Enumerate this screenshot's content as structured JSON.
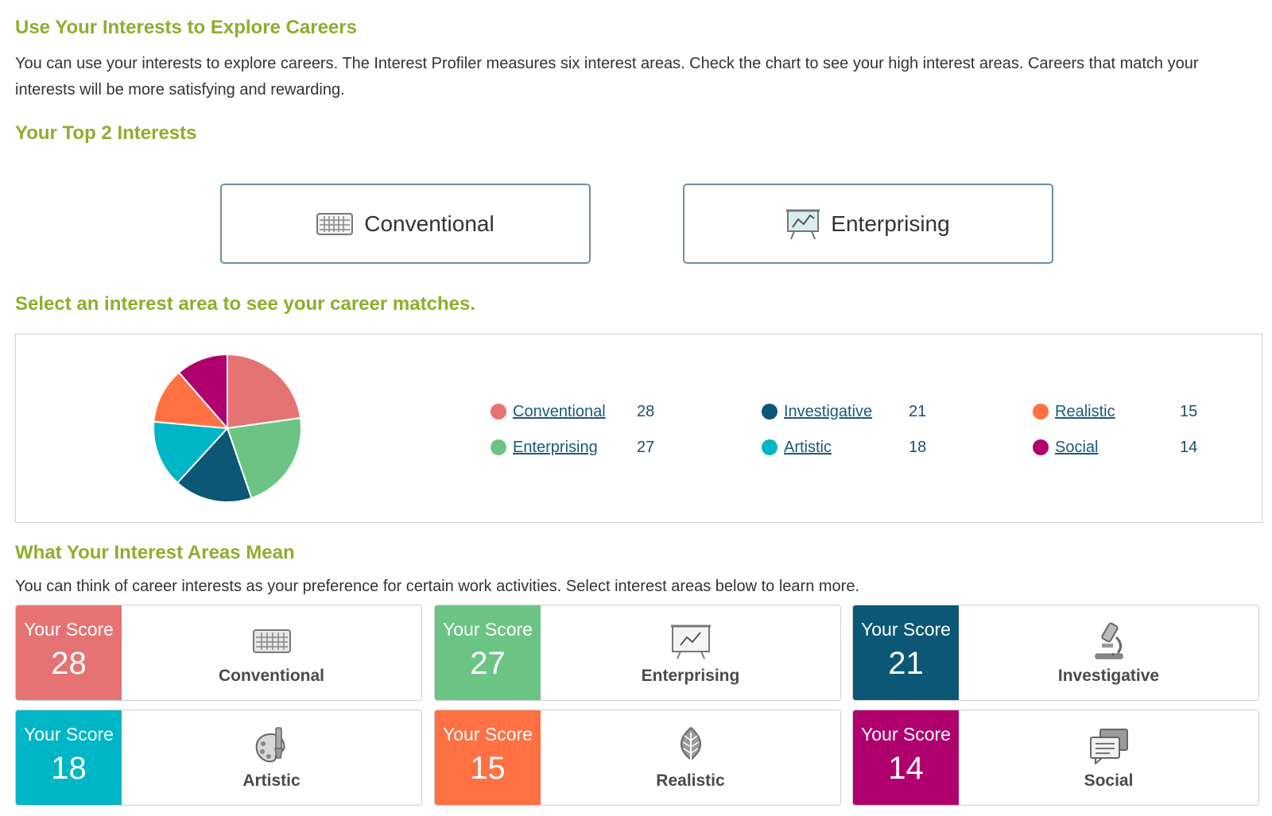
{
  "page": {
    "heading_explore": "Use Your Interests to Explore Careers",
    "intro_text": "You can use your interests to explore careers. The Interest Profiler measures six interest areas. Check the chart to see your high interest areas. Careers that match your interests will be more satisfying and rewarding.",
    "heading_top": "Your Top 2 Interests",
    "heading_select": "Select an interest area to see your career matches.",
    "heading_mean": "What Your Interest Areas Mean",
    "mean_text": "You can think of career interests as your preference for certain work activities. Select interest areas below to learn more."
  },
  "top_interests": [
    {
      "label": "Conventional",
      "icon": "keyboard-icon"
    },
    {
      "label": "Enterprising",
      "icon": "presentation-chart-icon"
    }
  ],
  "colors": {
    "Conventional": "#e57373",
    "Enterprising": "#6cc484",
    "Investigative": "#0b5775",
    "Artistic": "#00b5c6",
    "Realistic": "#ff7043",
    "Social": "#b0006e",
    "accent_heading": "#8dae2c",
    "link": "#1a5a7a"
  },
  "chart_data": {
    "type": "pie",
    "title": "",
    "categories": [
      "Conventional",
      "Enterprising",
      "Investigative",
      "Artistic",
      "Realistic",
      "Social"
    ],
    "values": [
      28,
      27,
      21,
      18,
      15,
      14
    ],
    "legend": "right"
  },
  "legend": [
    {
      "label": "Conventional",
      "value": "28"
    },
    {
      "label": "Enterprising",
      "value": "27"
    },
    {
      "label": "Investigative",
      "value": "21"
    },
    {
      "label": "Artistic",
      "value": "18"
    },
    {
      "label": "Realistic",
      "value": "15"
    },
    {
      "label": "Social",
      "value": "14"
    }
  ],
  "cards": [
    {
      "score_label": "Your Score",
      "score": "28",
      "name": "Conventional",
      "icon": "keyboard-icon"
    },
    {
      "score_label": "Your Score",
      "score": "27",
      "name": "Enterprising",
      "icon": "presentation-chart-icon"
    },
    {
      "score_label": "Your Score",
      "score": "21",
      "name": "Investigative",
      "icon": "microscope-icon"
    },
    {
      "score_label": "Your Score",
      "score": "18",
      "name": "Artistic",
      "icon": "palette-icon"
    },
    {
      "score_label": "Your Score",
      "score": "15",
      "name": "Realistic",
      "icon": "leaf-icon"
    },
    {
      "score_label": "Your Score",
      "score": "14",
      "name": "Social",
      "icon": "chat-bubbles-icon"
    }
  ]
}
